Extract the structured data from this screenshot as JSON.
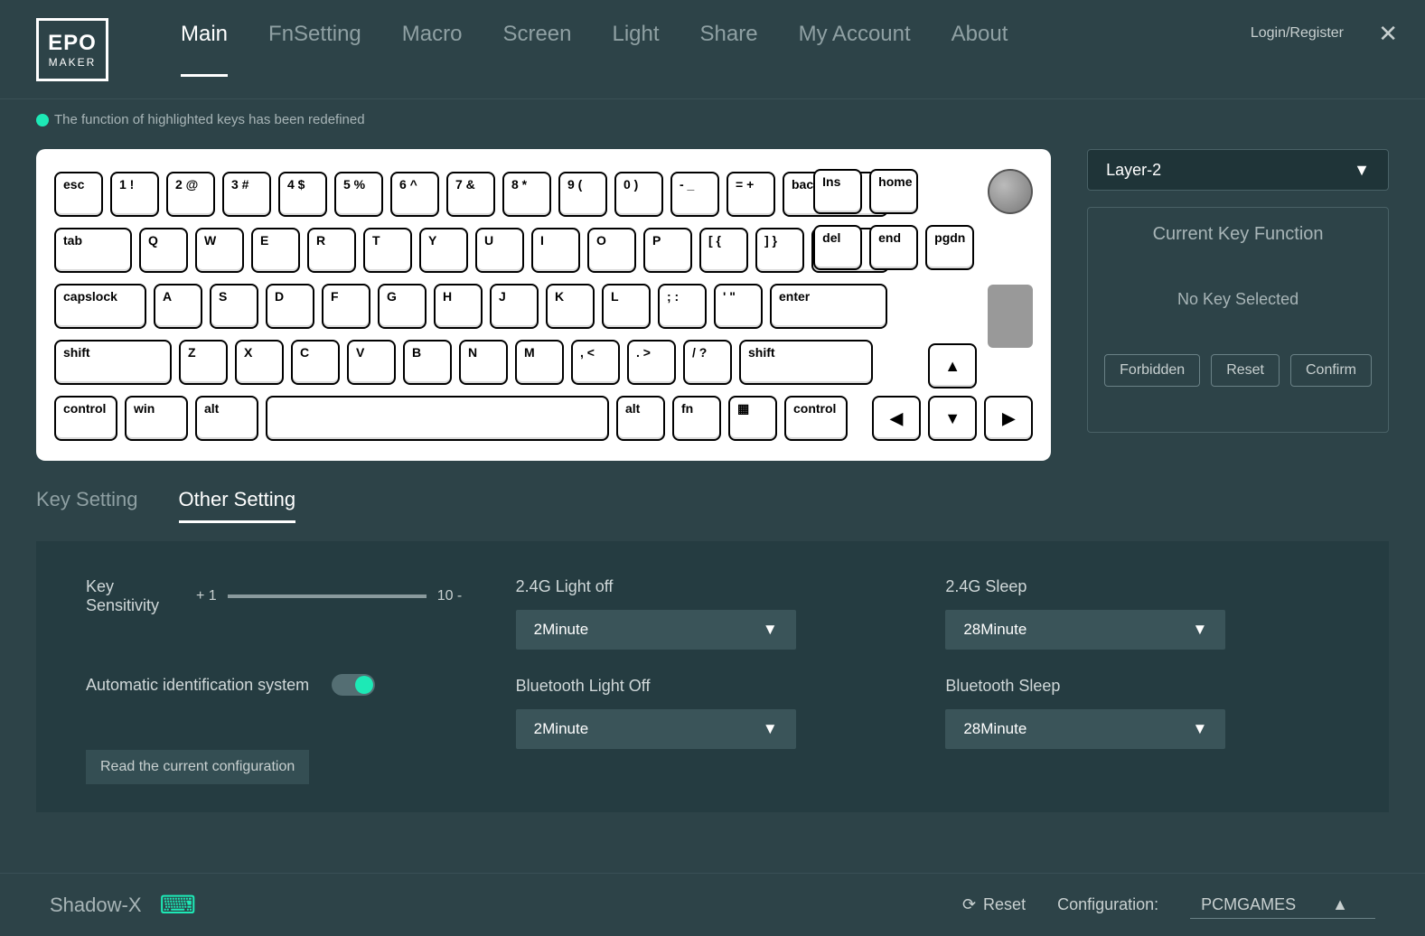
{
  "header": {
    "logo_top": "EPO",
    "logo_bot": "MAKER",
    "nav": [
      "Main",
      "FnSetting",
      "Macro",
      "Screen",
      "Light",
      "Share",
      "My Account",
      "About"
    ],
    "active_nav": 0,
    "login": "Login/Register"
  },
  "hint": "The function of highlighted keys has been redefined",
  "keyboard": {
    "row1": [
      "esc",
      "1 !",
      "2 @",
      "3 #",
      "4 $",
      "5 %",
      "6 ^",
      "7 &",
      "8 *",
      "9 (",
      "0 )",
      "- _",
      "= +",
      "backspace"
    ],
    "row2": [
      "tab",
      "Q",
      "W",
      "E",
      "R",
      "T",
      "Y",
      "U",
      "I",
      "O",
      "P",
      "[ {",
      "] }",
      "\\ |"
    ],
    "row3": [
      "capslock",
      "A",
      "S",
      "D",
      "F",
      "G",
      "H",
      "J",
      "K",
      "L",
      "; :",
      "' \"",
      "enter"
    ],
    "row4": [
      "shift",
      "Z",
      "X",
      "C",
      "V",
      "B",
      "N",
      "M",
      ", <",
      ". >",
      "/ ?",
      "shift"
    ],
    "row5": [
      "control",
      "win",
      "alt",
      "",
      "alt",
      "fn",
      "▦",
      "control"
    ],
    "nav1": [
      "Ins",
      "home"
    ],
    "nav2": [
      "del",
      "end",
      "pgdn"
    ]
  },
  "side": {
    "layer": "Layer-2",
    "panel_title": "Current Key Function",
    "panel_msg": "No Key Selected",
    "btns": [
      "Forbidden",
      "Reset",
      "Confirm"
    ]
  },
  "tabs2": [
    "Key Setting",
    "Other Setting"
  ],
  "active_tab2": 1,
  "settings": {
    "sensitivity_label": "Key Sensitivity",
    "sens_min": "+ 1",
    "sens_max": "10 -",
    "auto_id_label": "Automatic identification system",
    "auto_id_on": true,
    "read_cfg": "Read the current configuration",
    "groups": [
      {
        "label": "2.4G Light off",
        "value": "2Minute"
      },
      {
        "label": "2.4G Sleep",
        "value": "28Minute"
      },
      {
        "label": "Bluetooth Light Off",
        "value": "2Minute"
      },
      {
        "label": "Bluetooth Sleep",
        "value": "28Minute"
      }
    ]
  },
  "footer": {
    "device": "Shadow-X",
    "reset": "Reset",
    "cfg_label": "Configuration:",
    "cfg_value": "PCMGAMES"
  }
}
